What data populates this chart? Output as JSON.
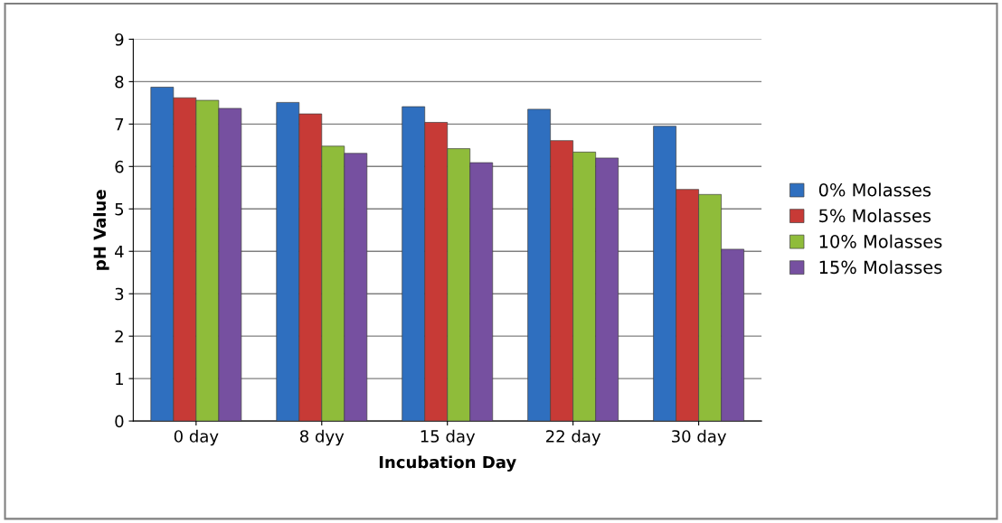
{
  "chart_data": {
    "type": "bar",
    "xlabel": "Incubation Day",
    "ylabel": "pH Value",
    "categories": [
      "0 day",
      "8 dyy",
      "15 day",
      "22 day",
      "30 day"
    ],
    "series": [
      {
        "name": "0% Molasses",
        "color": "#2f6fbf",
        "values": [
          7.87,
          7.51,
          7.41,
          7.35,
          6.95
        ]
      },
      {
        "name": "5% Molasses",
        "color": "#c73a36",
        "values": [
          7.62,
          7.24,
          7.04,
          6.61,
          5.46
        ]
      },
      {
        "name": "10% Molasses",
        "color": "#8fbc3a",
        "values": [
          7.56,
          6.48,
          6.42,
          6.34,
          5.34
        ]
      },
      {
        "name": "15% Molasses",
        "color": "#7650a0",
        "values": [
          7.37,
          6.31,
          6.09,
          6.2,
          4.05
        ]
      }
    ],
    "ylim": [
      0,
      9
    ],
    "yticks": [
      0,
      1,
      2,
      3,
      4,
      5,
      6,
      7,
      8,
      9
    ],
    "grid": "y",
    "legend": "right"
  }
}
